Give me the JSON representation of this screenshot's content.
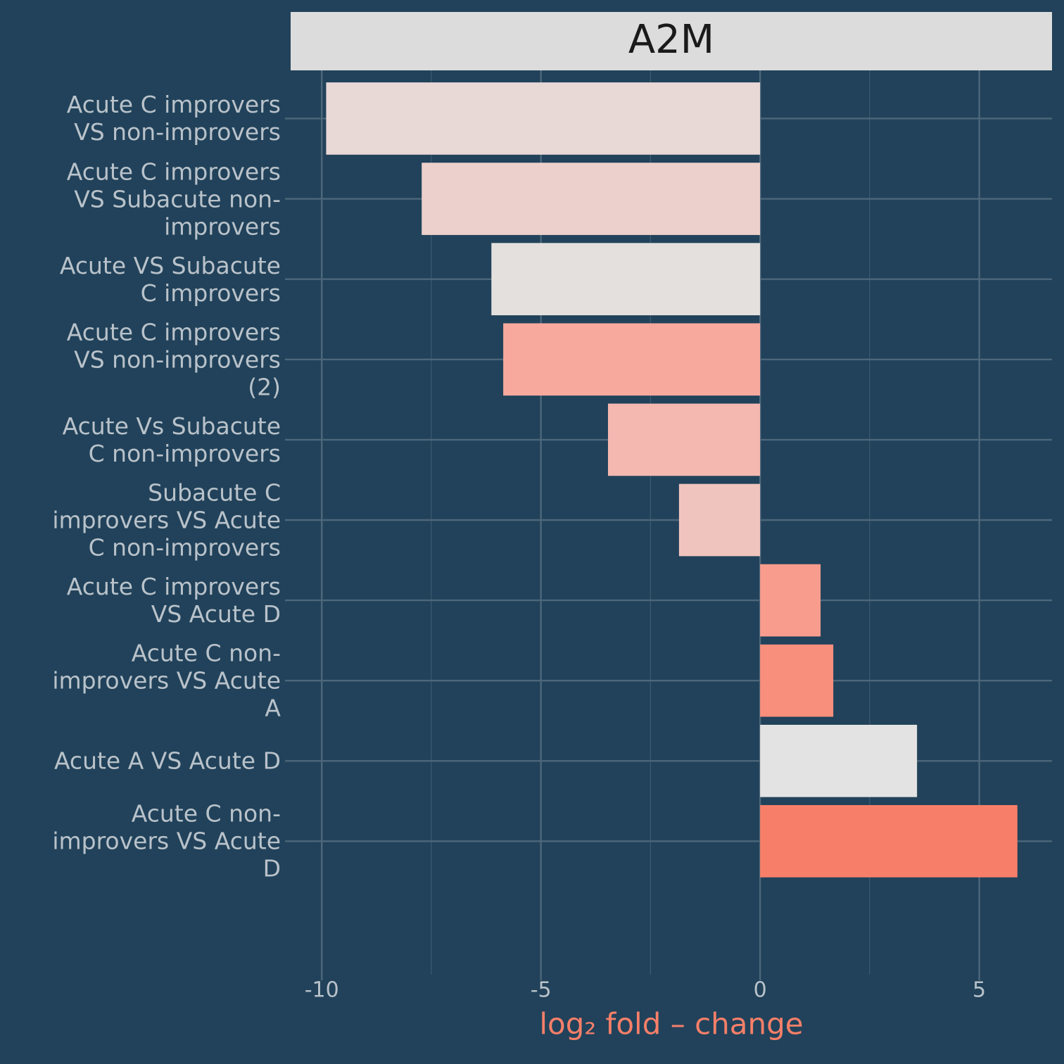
{
  "chart_data": {
    "type": "barh",
    "title": "A2M",
    "x_label": "log₂ fold – change",
    "categories": [
      "Acute C improvers\nVS non-improvers",
      "Acute C improvers\nVS Subacute non-\nimprovers",
      "Acute VS Subacute\nC improvers",
      "Acute C improvers\nVS non-improvers\n(2)",
      "Acute Vs Subacute\nC non-improvers",
      "Subacute C\nimprovers VS Acute\nC non-improvers",
      "Acute C improvers\nVS Acute D",
      "Acute C non-\nimprovers VS Acute\nA",
      "Acute A VS Acute D",
      "Acute C non-\nimprovers VS Acute\nD"
    ],
    "values": [
      -9.9,
      -7.72,
      -6.13,
      -5.86,
      -3.47,
      -1.85,
      1.38,
      1.67,
      3.58,
      5.87
    ],
    "colors": [
      "#e8d8d6",
      "#ecd0cb",
      "#e4e0dd",
      "#f8a99e",
      "#f4b8b1",
      "#f0c4be",
      "#f89c8e",
      "#f88f7d",
      "#e3e3e3",
      "#f77f69"
    ],
    "xlim": [
      -10.71,
      6.66
    ],
    "xticks": [
      -10,
      -5,
      0,
      5
    ],
    "grid": true
  }
}
